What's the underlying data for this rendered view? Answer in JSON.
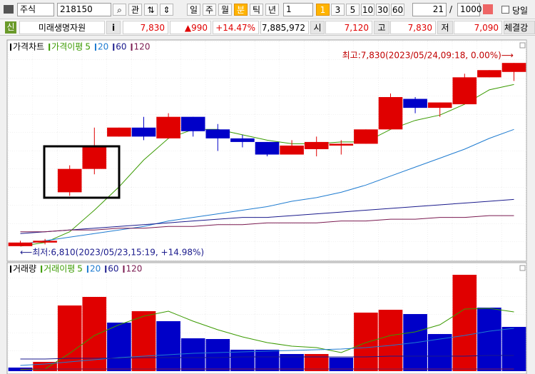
{
  "toolbar": {
    "market": "주식",
    "code": "218150",
    "watch": "관",
    "periods": [
      "일",
      "주",
      "월",
      "분",
      "틱",
      "년"
    ],
    "highlighted_period": 3,
    "interval": "1",
    "intervals": [
      "1",
      "3",
      "5",
      "10",
      "30",
      "60"
    ],
    "highlighted_interval": 0,
    "count": "21",
    "separator": "/",
    "max_count": "1000",
    "today": "당일"
  },
  "info_bar": {
    "badge": "신",
    "name": "미래생명자원",
    "info": "i",
    "price": "7,830",
    "change": "▲990",
    "change_pct": "+14.47%",
    "volume": "7,885,972",
    "open_label": "시",
    "open": "7,120",
    "high_label": "고",
    "high": "7,830",
    "low_label": "저",
    "low": "7,090",
    "strength_label": "체결강"
  },
  "chart_data": [
    {
      "type": "candlestick",
      "title": "가격차트",
      "legend_title": "가격이평",
      "up_color": "#e00000",
      "down_color": "#0000c8",
      "open": [
        6810,
        6830,
        7110,
        7240,
        7420,
        7470,
        7410,
        7530,
        7460,
        7410,
        7390,
        7320,
        7350,
        7370,
        7380,
        7460,
        7630,
        7580,
        7600,
        7750,
        7780
      ],
      "high": [
        6840,
        6850,
        7260,
        7470,
        7470,
        7530,
        7550,
        7530,
        7490,
        7430,
        7390,
        7400,
        7420,
        7400,
        7460,
        7660,
        7640,
        7610,
        7770,
        7790,
        7830
      ],
      "low": [
        6810,
        6820,
        7090,
        7210,
        7420,
        7400,
        7410,
        7420,
        7340,
        7360,
        7310,
        7320,
        7310,
        7320,
        7380,
        7460,
        7550,
        7530,
        7600,
        7750,
        7730
      ],
      "close": [
        6830,
        6840,
        7240,
        7370,
        7470,
        7420,
        7530,
        7450,
        7410,
        7390,
        7320,
        7370,
        7390,
        7380,
        7460,
        7640,
        7580,
        7610,
        7750,
        7790,
        7830
      ],
      "ylim": [
        6730,
        7950
      ],
      "series": [
        {
          "name": "5",
          "color": "#3a9a00",
          "values": [
            6810,
            6830,
            6890,
            7010,
            7140,
            7290,
            7410,
            7460,
            7460,
            7430,
            7400,
            7380,
            7380,
            7390,
            7390,
            7460,
            7510,
            7540,
            7600,
            7680,
            7710
          ]
        },
        {
          "name": "20",
          "color": "#1e7bd0",
          "values": [
            6820,
            6840,
            6860,
            6880,
            6900,
            6920,
            6950,
            6970,
            6990,
            7010,
            7030,
            7060,
            7080,
            7110,
            7150,
            7200,
            7250,
            7300,
            7350,
            7410,
            7460
          ]
        },
        {
          "name": "60",
          "color": "#1a1a8c",
          "values": [
            6880,
            6890,
            6900,
            6910,
            6920,
            6930,
            6940,
            6950,
            6960,
            6970,
            6970,
            6980,
            6990,
            7000,
            7010,
            7020,
            7030,
            7040,
            7050,
            7060,
            7070
          ]
        },
        {
          "name": "120",
          "color": "#7a1a50",
          "values": [
            6890,
            6890,
            6900,
            6900,
            6910,
            6910,
            6920,
            6920,
            6930,
            6930,
            6940,
            6940,
            6940,
            6950,
            6950,
            6960,
            6960,
            6970,
            6970,
            6980,
            6980
          ]
        }
      ],
      "annotations": [
        {
          "text": "최고:7,830(2023/05/24,09:18, 0.00%)⟶",
          "value": 7830,
          "color": "#c00000"
        },
        {
          "text": "⟵최저:6,810(2023/05/23,15:19, +14.98%)",
          "value": 6810,
          "color": "#1a1a8c"
        }
      ]
    },
    {
      "type": "bar",
      "title": "거래량",
      "legend_title": "거래이평",
      "values": [
        5000,
        13000,
        92000,
        104000,
        68000,
        84000,
        70000,
        46000,
        45000,
        30000,
        30000,
        24000,
        24000,
        19000,
        82000,
        86000,
        80000,
        52000,
        135000,
        89000,
        62000
      ],
      "colors": [
        "#0000c8",
        "#e00000",
        "#e00000",
        "#e00000",
        "#0000c8",
        "#e00000",
        "#0000c8",
        "#0000c8",
        "#0000c8",
        "#0000c8",
        "#0000c8",
        "#0000c8",
        "#e00000",
        "#0000c8",
        "#e00000",
        "#e00000",
        "#0000c8",
        "#0000c8",
        "#e00000",
        "#0000c8",
        "#0000c8"
      ],
      "ylim": [
        0,
        152000
      ],
      "series": [
        {
          "name": "5",
          "color": "#3a9a00",
          "values": [
            2000,
            3000,
            25000,
            50000,
            65000,
            77000,
            84000,
            70000,
            58000,
            48000,
            40000,
            35000,
            33000,
            26000,
            40000,
            50000,
            55000,
            65000,
            87000,
            88000,
            83000
          ]
        },
        {
          "name": "20",
          "color": "#1e7bd0",
          "values": [
            8000,
            10000,
            13000,
            16000,
            19000,
            21000,
            23000,
            25000,
            26000,
            27000,
            28000,
            29000,
            30000,
            31000,
            33000,
            36000,
            40000,
            45000,
            50000,
            56000,
            60000
          ]
        },
        {
          "name": "60",
          "color": "#1a1a8c",
          "values": [
            17000,
            17000,
            18000,
            18000,
            18000,
            19000,
            19000,
            19000,
            19000,
            20000,
            20000,
            20000,
            20000,
            20000,
            20000,
            21000,
            21000,
            21000,
            21000,
            22000,
            22000
          ]
        },
        {
          "name": "120",
          "color": "#7a1a50",
          "values": [
            3000,
            3000,
            3000,
            3000,
            3000,
            3000,
            3000,
            3000,
            3000,
            3000,
            3000,
            3000,
            3000,
            3000,
            3000,
            3000,
            3000,
            3000,
            3000,
            3000,
            3000
          ]
        }
      ]
    }
  ]
}
